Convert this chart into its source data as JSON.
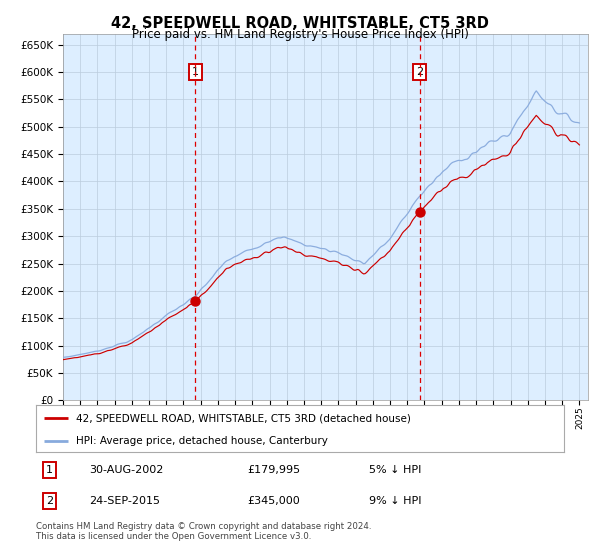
{
  "title": "42, SPEEDWELL ROAD, WHITSTABLE, CT5 3RD",
  "subtitle": "Price paid vs. HM Land Registry's House Price Index (HPI)",
  "legend_line1": "42, SPEEDWELL ROAD, WHITSTABLE, CT5 3RD (detached house)",
  "legend_line2": "HPI: Average price, detached house, Canterbury",
  "annotation1_date": "30-AUG-2002",
  "annotation1_price": "£179,995",
  "annotation1_hpi": "5% ↓ HPI",
  "annotation2_date": "24-SEP-2015",
  "annotation2_price": "£345,000",
  "annotation2_hpi": "9% ↓ HPI",
  "footnote_line1": "Contains HM Land Registry data © Crown copyright and database right 2024.",
  "footnote_line2": "This data is licensed under the Open Government Licence v3.0.",
  "line_red": "#cc0000",
  "line_blue": "#88aadd",
  "fill_blue": "#ccddf5",
  "bg_color": "#ddeeff",
  "grid_color": "#bbccdd",
  "marker_color": "#cc0000",
  "vline_color": "#dd0000",
  "box_edge_color": "#cc0000",
  "ylim_min": 0,
  "ylim_max": 670000,
  "ytick_step": 50000,
  "sale1_year": 2002.667,
  "sale1_price": 179995,
  "sale2_year": 2015.733,
  "sale2_price": 345000,
  "start_year": 1995,
  "end_year": 2025
}
